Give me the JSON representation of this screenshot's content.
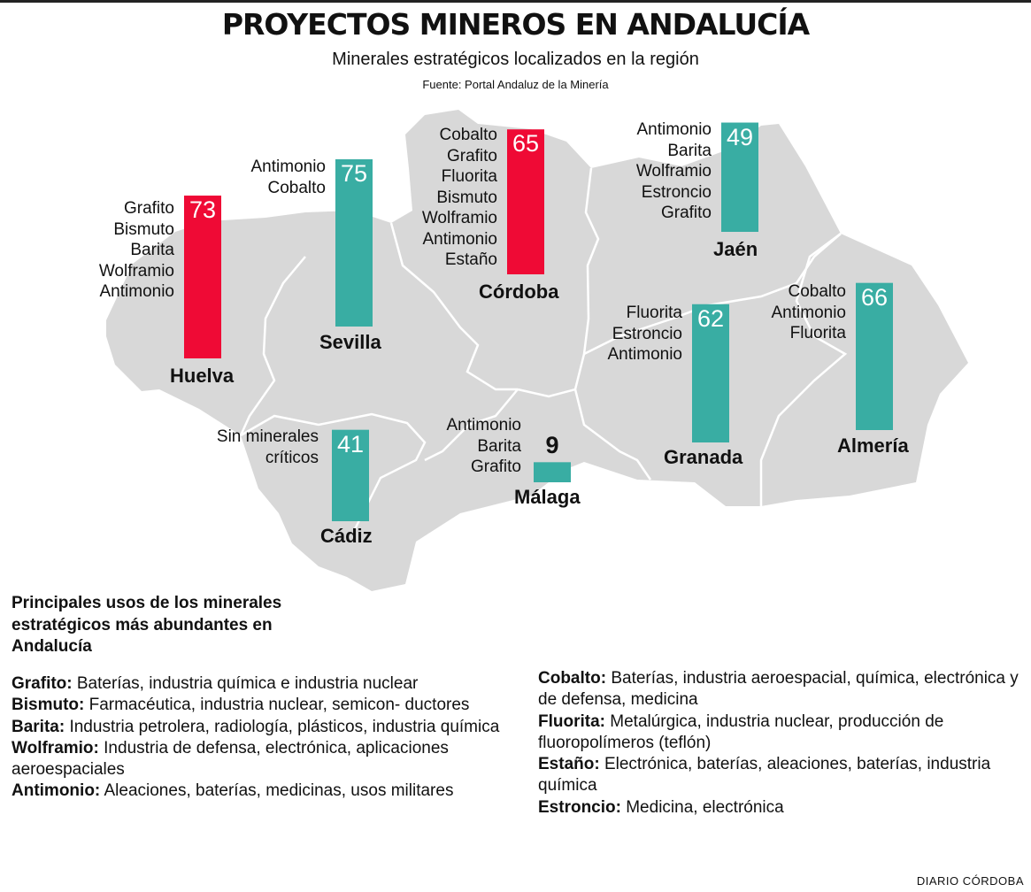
{
  "title": "PROYECTOS MINEROS EN ANDALUCÍA",
  "subtitle": "Minerales estratégicos localizados en la región",
  "source": "Fuente: Portal Andaluz de la Minería",
  "colors": {
    "highlight": "#ef0a35",
    "normal": "#39ada3",
    "map": "#d8d8d8",
    "borders": "#ffffff"
  },
  "chart_data": {
    "type": "bar",
    "categories": [
      "Huelva",
      "Sevilla",
      "Córdoba",
      "Jaén",
      "Granada",
      "Almería",
      "Cádiz",
      "Málaga"
    ],
    "values": [
      73,
      75,
      65,
      49,
      62,
      66,
      41,
      9
    ],
    "highlighted": [
      "Huelva",
      "Córdoba"
    ],
    "minerals": {
      "Huelva": [
        "Grafito",
        "Bismuto",
        "Barita",
        "Wolframio",
        "Antimonio"
      ],
      "Sevilla": [
        "Antimonio",
        "Cobalto"
      ],
      "Córdoba": [
        "Cobalto",
        "Grafito",
        "Fluorita",
        "Bismuto",
        "Wolframio",
        "Antimonio",
        "Estaño"
      ],
      "Jaén": [
        "Antimonio",
        "Barita",
        "Wolframio",
        "Estroncio",
        "Grafito"
      ],
      "Granada": [
        "Fluorita",
        "Estroncio",
        "Antimonio"
      ],
      "Almería": [
        "Cobalto",
        "Antimonio",
        "Fluorita"
      ],
      "Cádiz": [
        "Sin minerales",
        "críticos"
      ],
      "Málaga": [
        "Antimonio",
        "Barita",
        "Grafito"
      ]
    }
  },
  "uses": {
    "heading": "Principales usos de los minerales estratégicos más abundantes en Andalucía",
    "left": [
      {
        "mineral": "Grafito:",
        "text": "Baterías, industria química e industria nuclear"
      },
      {
        "mineral": "Bismuto:",
        "text": "Farmacéutica, industria nuclear, semicon- ductores"
      },
      {
        "mineral": "Barita:",
        "text": "Industria petrolera, radiología, plásticos, industria química"
      },
      {
        "mineral": "Wolframio:",
        "text": "Industria de defensa, electrónica, aplicaciones aeroespaciales"
      },
      {
        "mineral": "Antimonio:",
        "text": "Aleaciones, baterías, medicinas, usos militares"
      }
    ],
    "right": [
      {
        "mineral": "Cobalto:",
        "text": "Baterías, industria aeroespacial, química, electrónica y de defensa, medicina"
      },
      {
        "mineral": "Fluorita:",
        "text": "Metalúrgica, industria nuclear, producción de fluoropolímeros (teflón)"
      },
      {
        "mineral": "Estaño:",
        "text": "Electrónica, baterías, aleaciones, baterías, industria química"
      },
      {
        "mineral": "Estroncio:",
        "text": "Medicina, electrónica"
      }
    ]
  },
  "credit": "DIARIO CÓRDOBA"
}
